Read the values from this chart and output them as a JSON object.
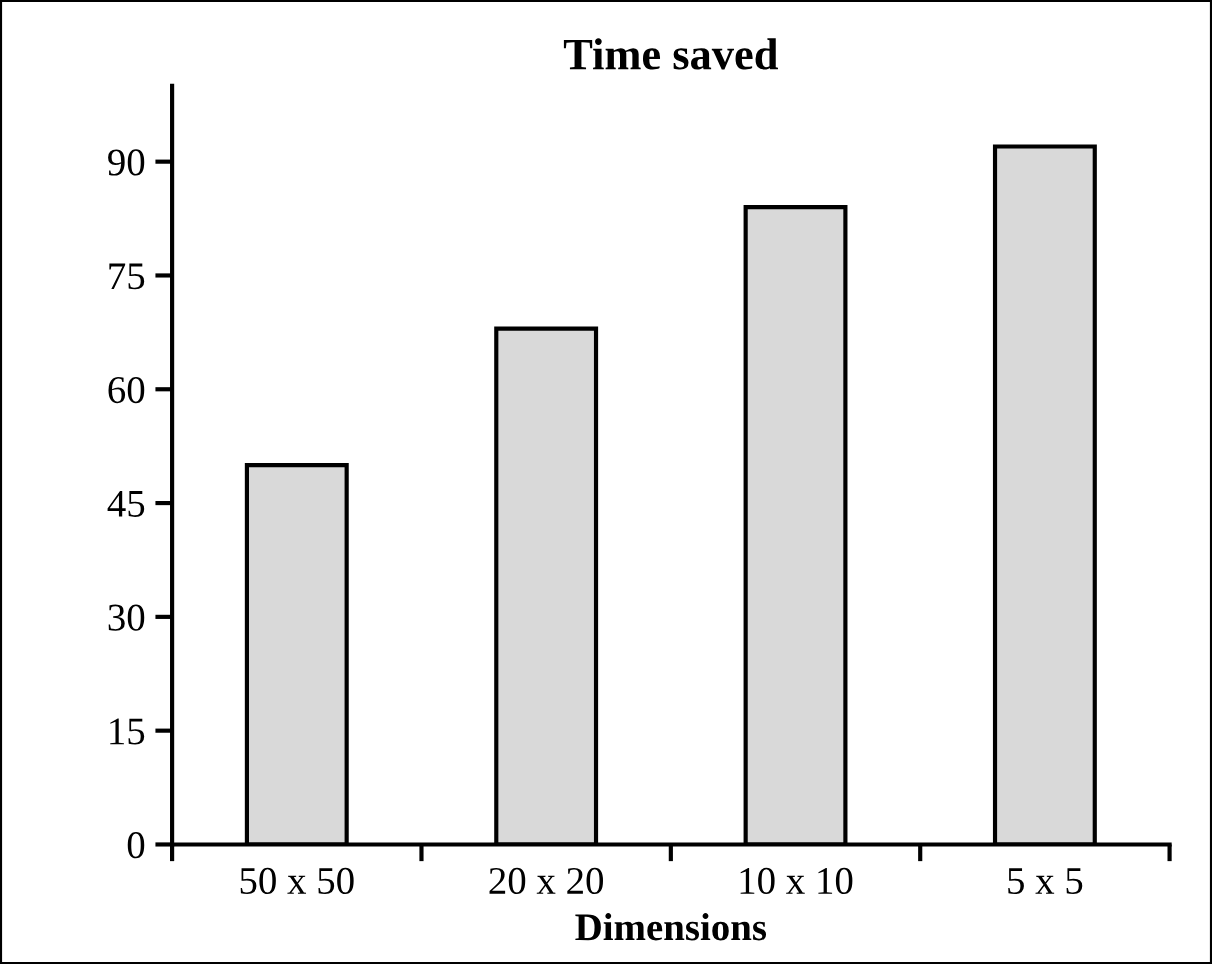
{
  "chart_data": {
    "type": "bar",
    "title": "Time saved",
    "xlabel": "Dimensions",
    "categories": [
      "50 x 50",
      "20 x 20",
      "10 x 10",
      "5 x 5"
    ],
    "values": [
      50,
      68,
      84,
      92
    ],
    "color": "#d9d9d9",
    "ylim": [
      0,
      100
    ],
    "yticks": [
      0,
      15,
      30,
      45,
      60,
      75,
      90
    ],
    "grid": false,
    "legend": false
  }
}
